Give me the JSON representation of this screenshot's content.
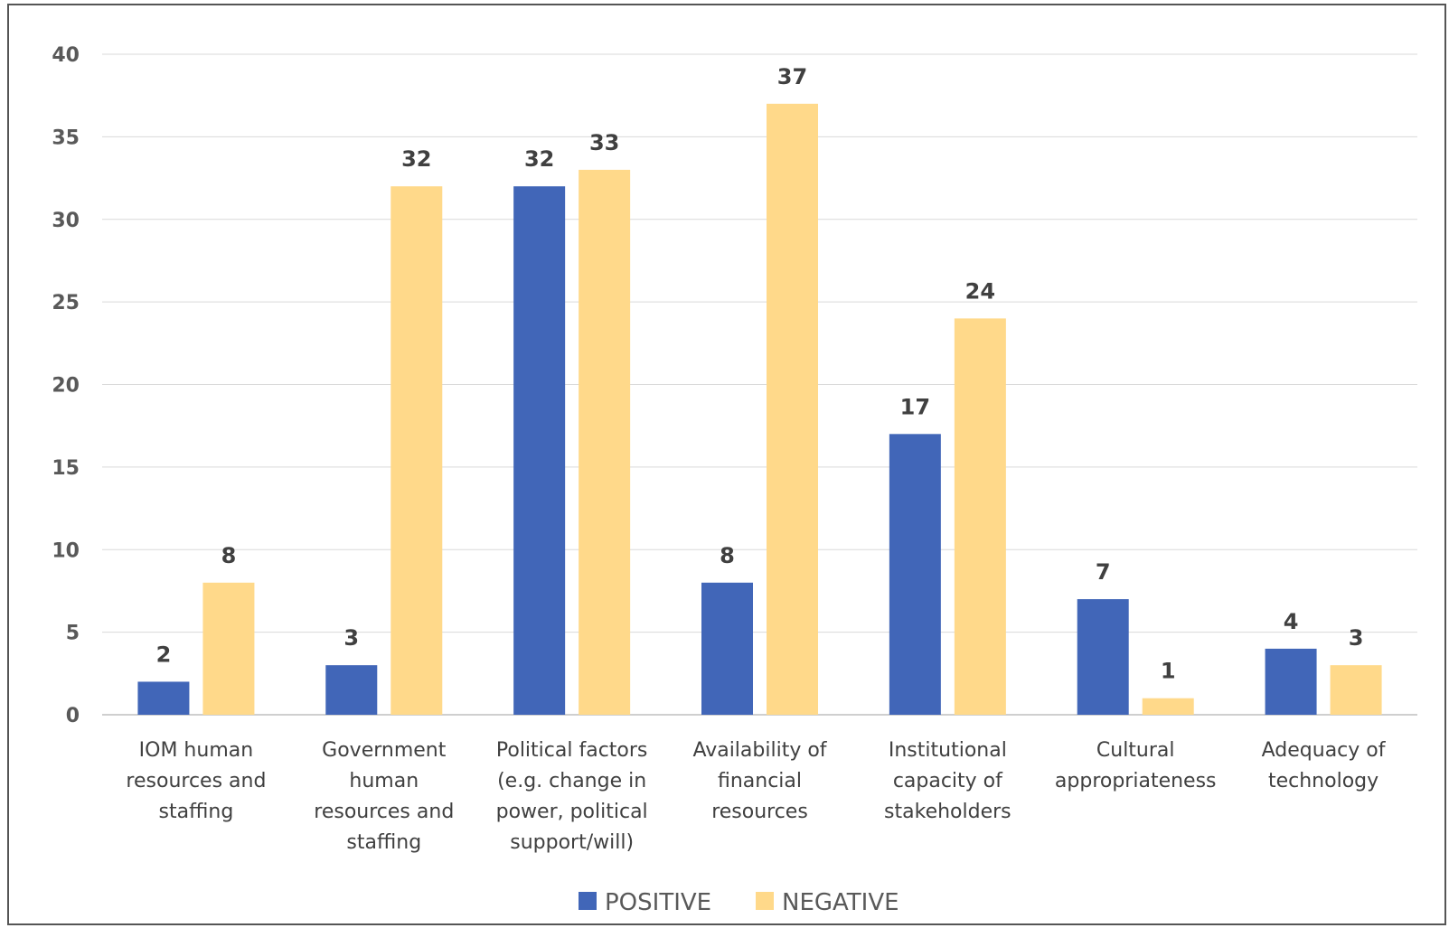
{
  "chart_data": {
    "type": "bar",
    "title": "",
    "xlabel": "",
    "ylabel": "",
    "ylim": [
      0,
      40
    ],
    "yticks": [
      0,
      5,
      10,
      15,
      20,
      25,
      30,
      35,
      40
    ],
    "grid": true,
    "legend_position": "bottom",
    "categories": [
      [
        "IOM human",
        "resources and",
        "staffing"
      ],
      [
        "Government",
        "human",
        "resources and",
        "staffing"
      ],
      [
        "Political factors",
        "(e.g. change in",
        "power, political",
        "support/will)"
      ],
      [
        "Availability of",
        "financial",
        "resources"
      ],
      [
        "Institutional",
        "capacity of",
        "stakeholders"
      ],
      [
        "Cultural",
        "appropriateness"
      ],
      [
        "Adequacy of",
        "technology"
      ]
    ],
    "series": [
      {
        "name": "POSITIVE",
        "color": "#4166B8",
        "values": [
          2,
          3,
          32,
          8,
          17,
          7,
          4
        ]
      },
      {
        "name": "NEGATIVE",
        "color": "#FFD98A",
        "values": [
          8,
          32,
          33,
          37,
          24,
          1,
          3
        ]
      }
    ]
  }
}
